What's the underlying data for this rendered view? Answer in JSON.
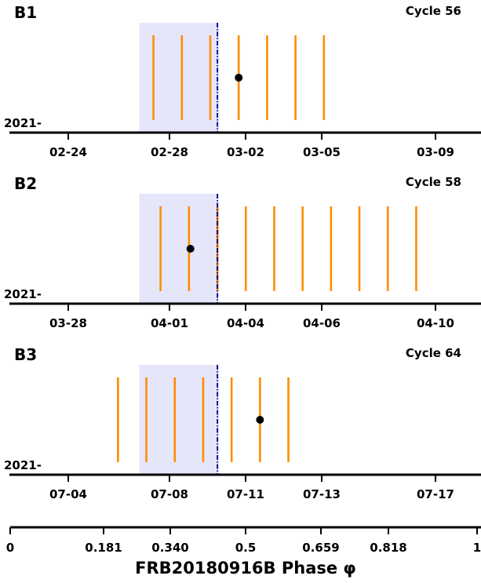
{
  "chart_data": {
    "type": "timeline",
    "panels": [
      {
        "label": "B1",
        "cycle_label": "Cycle 56",
        "year_prefix": "2021-",
        "tick_labels": [
          "02-24",
          "02-28",
          "03-02",
          "03-05",
          "03-09"
        ],
        "observation_days": [
          0.6,
          0.8,
          1.0,
          1.2,
          1.4,
          1.6,
          1.8
        ],
        "detection_day": 1.2,
        "highlight_range": [
          0.5,
          1.06
        ],
        "center_line_day": 1.05
      },
      {
        "label": "B2",
        "cycle_label": "Cycle 58",
        "year_prefix": "2021-",
        "tick_labels": [
          "03-28",
          "04-01",
          "04-04",
          "04-06",
          "04-10"
        ],
        "observation_days": [
          0.65,
          0.85,
          1.05,
          1.25,
          1.45,
          1.65,
          1.85,
          2.05,
          2.25,
          2.45
        ],
        "detection_day": 0.86,
        "highlight_range": [
          0.5,
          1.06
        ],
        "center_line_day": 1.05
      },
      {
        "label": "B3",
        "cycle_label": "Cycle 64",
        "year_prefix": "2021-",
        "tick_labels": [
          "07-04",
          "07-08",
          "07-11",
          "07-13",
          "07-17"
        ],
        "observation_days": [
          0.35,
          0.55,
          0.75,
          0.95,
          1.15,
          1.35,
          1.55
        ],
        "detection_day": 1.35,
        "highlight_range": [
          0.5,
          1.06
        ],
        "center_line_day": 1.05
      }
    ],
    "phase_axis": {
      "label": "FRB20180916B Phase φ",
      "ticks": [
        0,
        0.181,
        0.34,
        0.5,
        0.659,
        0.818,
        1
      ],
      "tick_labels": [
        "0",
        "0.181",
        "0.340",
        "0.5",
        "0.659",
        "0.818",
        "1"
      ]
    },
    "colors": {
      "observation": "#ff8c00",
      "detection": "#000000",
      "highlight": "#e6e6fa",
      "center_line": "#00008b",
      "axis": "#000000"
    }
  }
}
